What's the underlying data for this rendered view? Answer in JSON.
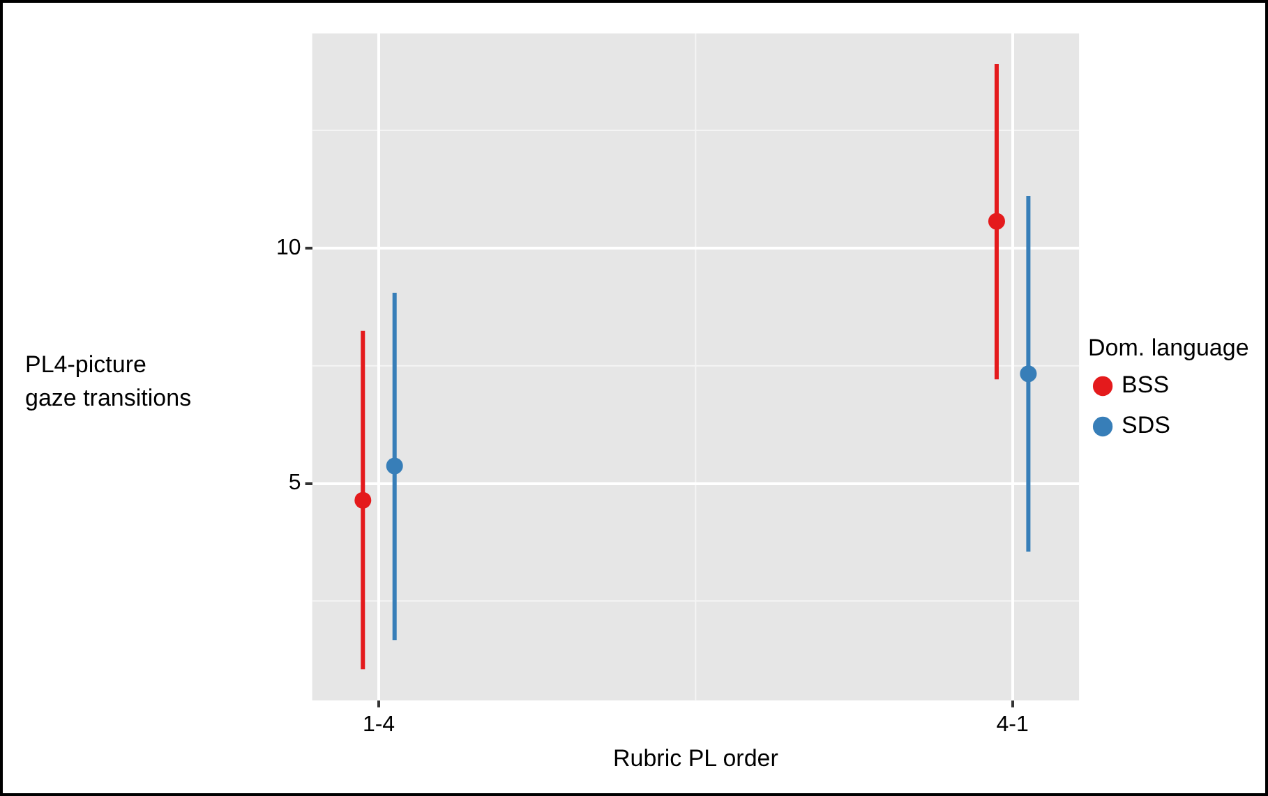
{
  "chart_data": {
    "type": "scatter",
    "xlabel": "Rubric PL order",
    "ylabel": "PL4-picture\ngaze transitions",
    "legend_title": "Dom. language",
    "categories": [
      "1-4",
      "4-1"
    ],
    "series": [
      {
        "name": "BSS",
        "color": "#e41a1c",
        "values": [
          4.64,
          10.57
        ],
        "errors": [
          [
            1.05,
            8.24
          ],
          [
            7.21,
            13.91
          ]
        ]
      },
      {
        "name": "SDS",
        "color": "#377eb8",
        "values": [
          5.37,
          7.33
        ],
        "errors": [
          [
            1.67,
            9.05
          ],
          [
            3.55,
            11.11
          ]
        ]
      }
    ],
    "ylim": [
      0.39,
      14.56
    ],
    "yticks": [
      5,
      10
    ],
    "grid": true,
    "legend": "right",
    "marker": "circle"
  }
}
